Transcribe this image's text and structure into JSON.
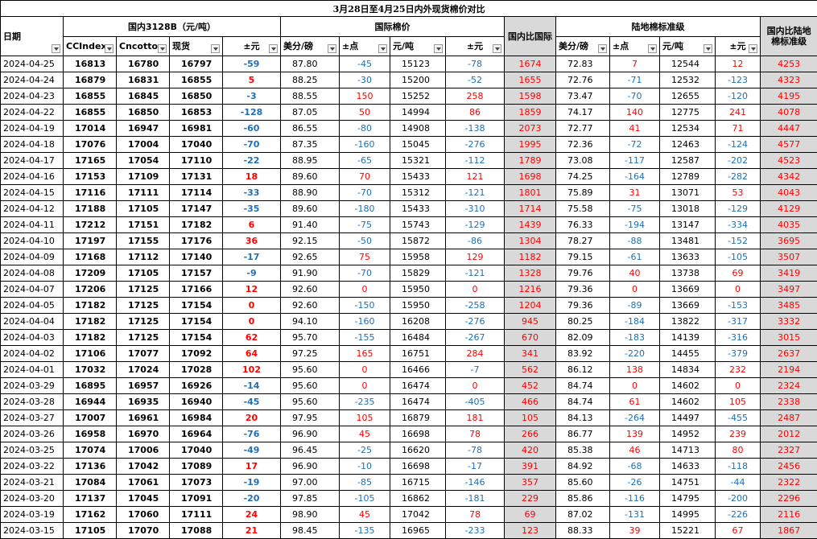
{
  "title": "3月28日至4月25日内外现货棉价对比",
  "groups": {
    "domestic": "国内3128B（元/吨）",
    "intl": "国际棉价",
    "ratio_intl": "国内比国际",
    "standard": "陆地棉标准级",
    "ratio_std": "国内比陆地棉标准级"
  },
  "headers": [
    "日期",
    "CCIndex",
    "Cncotton",
    "现货",
    "±元",
    "美分/磅",
    "±点",
    "元/吨",
    "±元",
    "美分/磅",
    "±点",
    "元/吨",
    "±元"
  ],
  "rows": [
    [
      "2024-04-25",
      "16813",
      "16780",
      "16797",
      "-59",
      "87.80",
      "-45",
      "15123",
      "-78",
      "1674",
      "72.83",
      "7",
      "12544",
      "12",
      "4253"
    ],
    [
      "2024-04-24",
      "16879",
      "16831",
      "16855",
      "5",
      "88.25",
      "-30",
      "15200",
      "-52",
      "1655",
      "72.76",
      "-71",
      "12532",
      "-123",
      "4323"
    ],
    [
      "2024-04-23",
      "16855",
      "16845",
      "16850",
      "-3",
      "88.55",
      "150",
      "15252",
      "258",
      "1598",
      "73.47",
      "-70",
      "12655",
      "-120",
      "4195"
    ],
    [
      "2024-04-22",
      "16855",
      "16850",
      "16853",
      "-128",
      "87.05",
      "50",
      "14994",
      "86",
      "1859",
      "74.17",
      "140",
      "12775",
      "241",
      "4078"
    ],
    [
      "2024-04-19",
      "17014",
      "16947",
      "16981",
      "-60",
      "86.55",
      "-80",
      "14908",
      "-138",
      "2073",
      "72.77",
      "41",
      "12534",
      "71",
      "4447"
    ],
    [
      "2024-04-18",
      "17076",
      "17004",
      "17040",
      "-70",
      "87.35",
      "-160",
      "15045",
      "-276",
      "1995",
      "72.36",
      "-72",
      "12463",
      "-124",
      "4577"
    ],
    [
      "2024-04-17",
      "17165",
      "17054",
      "17110",
      "-22",
      "88.95",
      "-65",
      "15321",
      "-112",
      "1789",
      "73.08",
      "-117",
      "12587",
      "-202",
      "4523"
    ],
    [
      "2024-04-16",
      "17153",
      "17109",
      "17131",
      "18",
      "89.60",
      "70",
      "15433",
      "121",
      "1698",
      "74.25",
      "-164",
      "12789",
      "-282",
      "4342"
    ],
    [
      "2024-04-15",
      "17116",
      "17111",
      "17114",
      "-33",
      "88.90",
      "-70",
      "15312",
      "-121",
      "1801",
      "75.89",
      "31",
      "13071",
      "53",
      "4043"
    ],
    [
      "2024-04-12",
      "17188",
      "17105",
      "17147",
      "-35",
      "89.60",
      "-180",
      "15433",
      "-310",
      "1714",
      "75.58",
      "-75",
      "13018",
      "-129",
      "4129"
    ],
    [
      "2024-04-11",
      "17212",
      "17151",
      "17182",
      "6",
      "91.40",
      "-75",
      "15743",
      "-129",
      "1439",
      "76.33",
      "-194",
      "13147",
      "-334",
      "4035"
    ],
    [
      "2024-04-10",
      "17197",
      "17155",
      "17176",
      "36",
      "92.15",
      "-50",
      "15872",
      "-86",
      "1304",
      "78.27",
      "-88",
      "13481",
      "-152",
      "3695"
    ],
    [
      "2024-04-09",
      "17168",
      "17112",
      "17140",
      "-17",
      "92.65",
      "75",
      "15958",
      "129",
      "1182",
      "79.15",
      "-61",
      "13633",
      "-105",
      "3507"
    ],
    [
      "2024-04-08",
      "17209",
      "17105",
      "17157",
      "-9",
      "91.90",
      "-70",
      "15829",
      "-121",
      "1328",
      "79.76",
      "40",
      "13738",
      "69",
      "3419"
    ],
    [
      "2024-04-07",
      "17206",
      "17125",
      "17166",
      "12",
      "92.60",
      "0",
      "15950",
      "0",
      "1216",
      "79.36",
      "0",
      "13669",
      "0",
      "3497"
    ],
    [
      "2024-04-05",
      "17182",
      "17125",
      "17154",
      "0",
      "92.60",
      "-150",
      "15950",
      "-258",
      "1204",
      "79.36",
      "-89",
      "13669",
      "-153",
      "3485"
    ],
    [
      "2024-04-04",
      "17182",
      "17125",
      "17154",
      "0",
      "94.10",
      "-160",
      "16208",
      "-276",
      "945",
      "80.25",
      "-184",
      "13822",
      "-317",
      "3332"
    ],
    [
      "2024-04-03",
      "17182",
      "17125",
      "17154",
      "62",
      "95.70",
      "-155",
      "16484",
      "-267",
      "670",
      "82.09",
      "-183",
      "14139",
      "-316",
      "3015"
    ],
    [
      "2024-04-02",
      "17106",
      "17077",
      "17092",
      "64",
      "97.25",
      "165",
      "16751",
      "284",
      "341",
      "83.92",
      "-220",
      "14455",
      "-379",
      "2637"
    ],
    [
      "2024-04-01",
      "17032",
      "17024",
      "17028",
      "102",
      "95.60",
      "0",
      "16466",
      "-7",
      "562",
      "86.12",
      "138",
      "14834",
      "232",
      "2194"
    ],
    [
      "2024-03-29",
      "16895",
      "16957",
      "16926",
      "-14",
      "95.60",
      "0",
      "16474",
      "0",
      "452",
      "84.74",
      "0",
      "14602",
      "0",
      "2324"
    ],
    [
      "2024-03-28",
      "16944",
      "16935",
      "16940",
      "-45",
      "95.60",
      "-235",
      "16474",
      "-405",
      "466",
      "84.74",
      "61",
      "14602",
      "105",
      "2338"
    ],
    [
      "2024-03-27",
      "17007",
      "16961",
      "16984",
      "20",
      "97.95",
      "105",
      "16879",
      "181",
      "105",
      "84.13",
      "-264",
      "14497",
      "-455",
      "2487"
    ],
    [
      "2024-03-26",
      "16958",
      "16970",
      "16964",
      "-76",
      "96.90",
      "45",
      "16698",
      "78",
      "266",
      "86.77",
      "139",
      "14952",
      "239",
      "2012"
    ],
    [
      "2024-03-25",
      "17074",
      "17006",
      "17040",
      "-49",
      "96.45",
      "-25",
      "16620",
      "-78",
      "420",
      "85.38",
      "46",
      "14713",
      "80",
      "2327"
    ],
    [
      "2024-03-22",
      "17136",
      "17042",
      "17089",
      "17",
      "96.90",
      "-10",
      "16698",
      "-17",
      "391",
      "84.92",
      "-68",
      "14633",
      "-118",
      "2456"
    ],
    [
      "2024-03-21",
      "17084",
      "17061",
      "17073",
      "-19",
      "97.00",
      "-85",
      "16715",
      "-146",
      "357",
      "85.60",
      "-26",
      "14751",
      "-44",
      "2322"
    ],
    [
      "2024-03-20",
      "17137",
      "17045",
      "17091",
      "-20",
      "97.85",
      "-105",
      "16862",
      "-181",
      "229",
      "85.86",
      "-116",
      "14795",
      "-200",
      "2296"
    ],
    [
      "2024-03-19",
      "17162",
      "17060",
      "17111",
      "24",
      "98.90",
      "45",
      "17042",
      "78",
      "69",
      "87.02",
      "-131",
      "14995",
      "-226",
      "2116"
    ],
    [
      "2024-03-15",
      "17105",
      "17070",
      "17088",
      "21",
      "98.45",
      "-135",
      "16965",
      "-233",
      "123",
      "88.33",
      "39",
      "15221",
      "67",
      "1867"
    ]
  ],
  "colors": {
    "positive": "#ff0000",
    "negative": "#1f6fb5",
    "ratio_col_bg": "#d9d9d9"
  }
}
